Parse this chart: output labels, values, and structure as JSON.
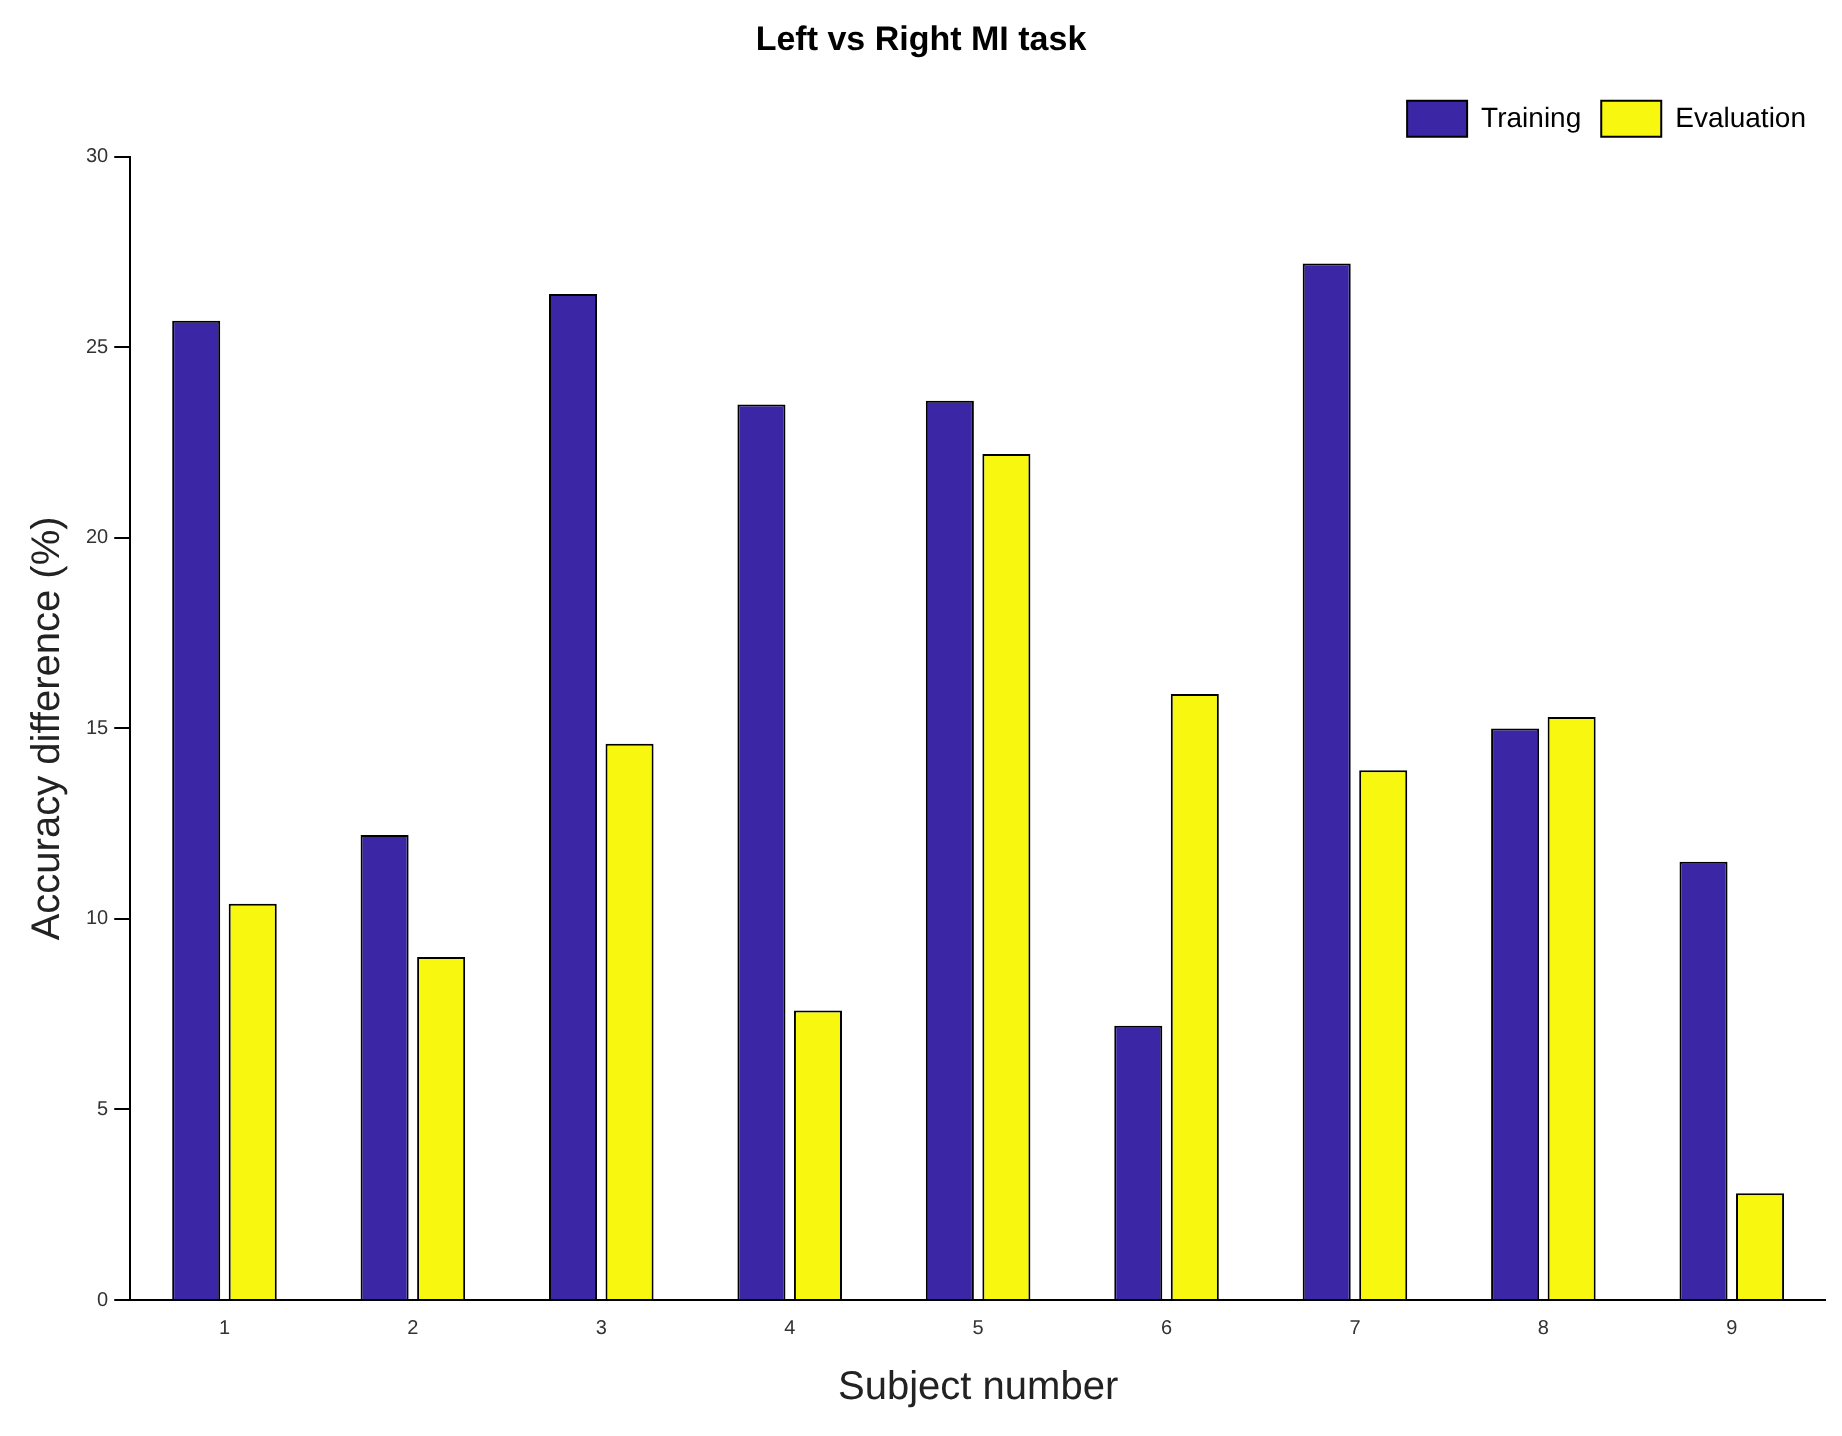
{
  "chart_data": {
    "type": "bar",
    "title": "Left vs Right MI task",
    "xlabel": "Subject number",
    "ylabel": "Accuracy difference (%)",
    "categories": [
      "1",
      "2",
      "3",
      "4",
      "5",
      "6",
      "7",
      "8",
      "9"
    ],
    "series": [
      {
        "name": "Training",
        "color": "#3b27a6",
        "values": [
          25.7,
          12.2,
          26.4,
          23.5,
          23.6,
          7.2,
          27.2,
          15.0,
          11.5
        ]
      },
      {
        "name": "Evaluation",
        "color": "#f7f710",
        "values": [
          10.4,
          9.0,
          14.6,
          7.6,
          22.2,
          15.9,
          13.9,
          15.3,
          2.8
        ]
      }
    ],
    "ylim": [
      0,
      30
    ],
    "yticks": [
      0,
      5,
      10,
      15,
      20,
      25,
      30
    ],
    "grid": false,
    "legend": "top right"
  }
}
